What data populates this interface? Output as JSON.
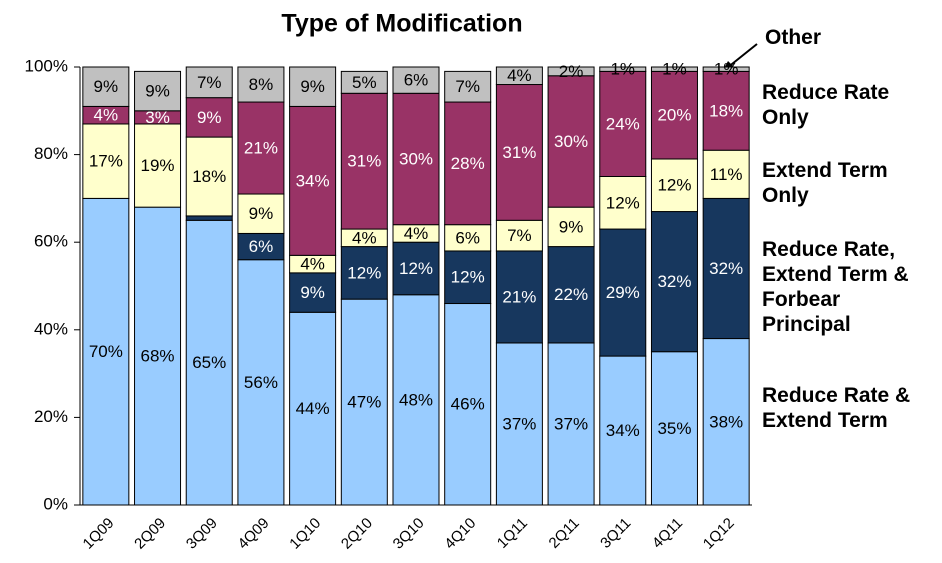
{
  "chart_data": {
    "type": "stacked_bar",
    "title": "Type of Modification",
    "categories": [
      "1Q09",
      "2Q09",
      "3Q09",
      "4Q09",
      "1Q10",
      "2Q10",
      "3Q10",
      "4Q10",
      "1Q11",
      "2Q11",
      "3Q11",
      "4Q11",
      "1Q12"
    ],
    "series": [
      {
        "name": "Reduce Rate & Extend Term",
        "color": "#99ccff",
        "values": [
          70,
          68,
          65,
          56,
          44,
          47,
          48,
          46,
          37,
          37,
          34,
          35,
          38
        ],
        "value_labels": [
          "70%",
          "68%",
          "65%",
          "56%",
          "44%",
          "47%",
          "48%",
          "46%",
          "37%",
          "37%",
          "34%",
          "35%",
          "38%"
        ]
      },
      {
        "name": "Reduce Rate, Extend Term & Forbear Principal",
        "color": "#17375e",
        "values": [
          0,
          0,
          1,
          6,
          9,
          12,
          12,
          12,
          21,
          22,
          29,
          32,
          32
        ],
        "value_labels": [
          null,
          null,
          null,
          "6%",
          "9%",
          "12%",
          "12%",
          "12%",
          "21%",
          "22%",
          "29%",
          "32%",
          "32%"
        ]
      },
      {
        "name": "Extend Term Only",
        "color": "#ffffcc",
        "values": [
          17,
          19,
          18,
          9,
          4,
          4,
          4,
          6,
          7,
          9,
          12,
          12,
          11
        ],
        "value_labels": [
          "17%",
          "19%",
          "18%",
          "9%",
          "4%",
          "4%",
          "4%",
          "6%",
          "7%",
          "9%",
          "12%",
          "12%",
          "11%"
        ]
      },
      {
        "name": "Reduce Rate Only",
        "color": "#993366",
        "values": [
          4,
          3,
          9,
          21,
          34,
          31,
          30,
          28,
          31,
          30,
          24,
          20,
          18
        ],
        "value_labels": [
          "4%",
          "3%",
          "9%",
          "21%",
          "34%",
          "31%",
          "30%",
          "28%",
          "31%",
          "30%",
          "24%",
          "20%",
          "18%"
        ]
      },
      {
        "name": "Other",
        "color": "#c0c0c0",
        "values": [
          9,
          9,
          7,
          8,
          9,
          5,
          6,
          7,
          4,
          2,
          1,
          1,
          1
        ],
        "value_labels": [
          "9%",
          "9%",
          "7%",
          "8%",
          "9%",
          "5%",
          "6%",
          "7%",
          "4%",
          "2%",
          "1%",
          "1%",
          "1%"
        ]
      }
    ],
    "ylim": [
      0,
      100
    ],
    "yticks": [
      {
        "value": 0,
        "label": "0%"
      },
      {
        "value": 20,
        "label": "20%"
      },
      {
        "value": 40,
        "label": "40%"
      },
      {
        "value": 60,
        "label": "60%"
      },
      {
        "value": 80,
        "label": "80%"
      },
      {
        "value": 100,
        "label": "100%"
      }
    ]
  }
}
